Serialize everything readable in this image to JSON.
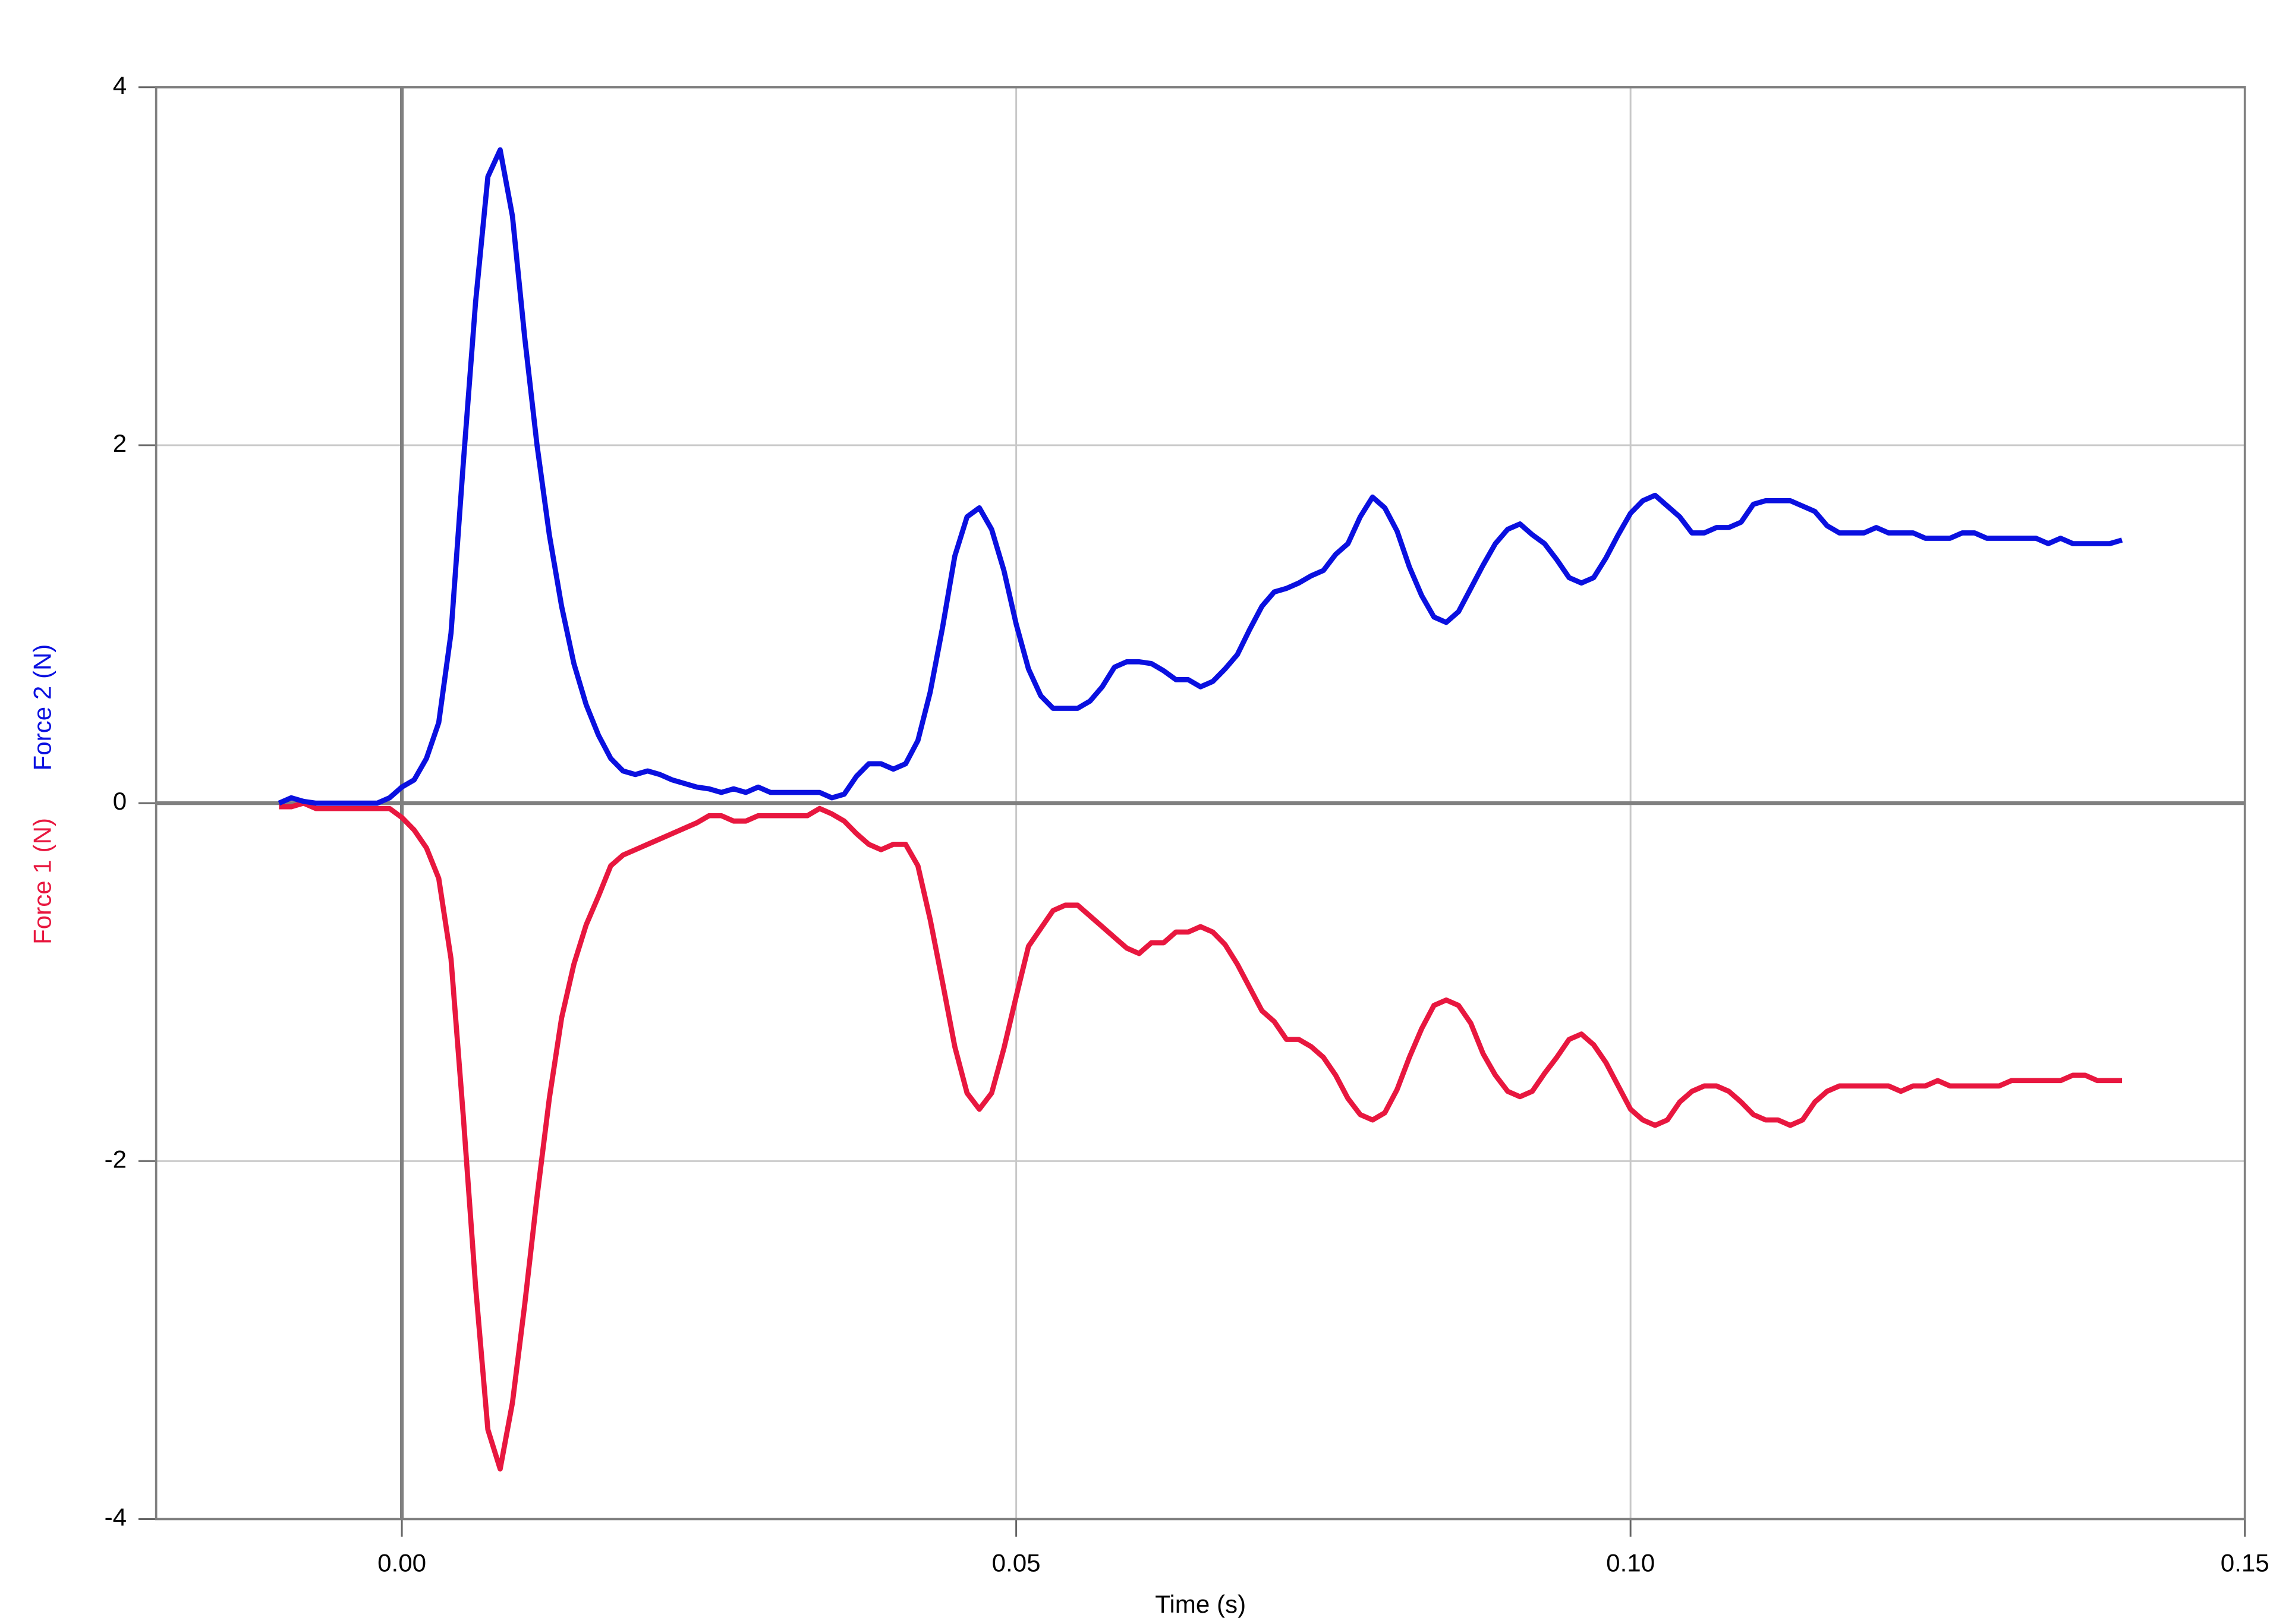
{
  "chart_data": {
    "type": "line",
    "xlabel": "Time (s)",
    "x": [
      -0.01,
      -0.009,
      -0.008,
      -0.007,
      -0.006,
      -0.005,
      -0.004,
      -0.003,
      -0.002,
      -0.001,
      0,
      0.001,
      0.002,
      0.003,
      0.004,
      0.005,
      0.006,
      0.007,
      0.008,
      0.009,
      0.01,
      0.011,
      0.012,
      0.013,
      0.014,
      0.015,
      0.016,
      0.017,
      0.018,
      0.019,
      0.02,
      0.021,
      0.022,
      0.023,
      0.024,
      0.025,
      0.026,
      0.027,
      0.028,
      0.029,
      0.03,
      0.031,
      0.032,
      0.033,
      0.034,
      0.035,
      0.036,
      0.037,
      0.038,
      0.039,
      0.04,
      0.041,
      0.042,
      0.043,
      0.044,
      0.045,
      0.046,
      0.047,
      0.048,
      0.049,
      0.05,
      0.051,
      0.052,
      0.053,
      0.054,
      0.055,
      0.056,
      0.057,
      0.058,
      0.059,
      0.06,
      0.061,
      0.062,
      0.063,
      0.064,
      0.065,
      0.066,
      0.067,
      0.068,
      0.069,
      0.07,
      0.071,
      0.072,
      0.073,
      0.074,
      0.075,
      0.076,
      0.077,
      0.078,
      0.079,
      0.08,
      0.081,
      0.082,
      0.083,
      0.084,
      0.085,
      0.086,
      0.087,
      0.088,
      0.089,
      0.09,
      0.091,
      0.092,
      0.093,
      0.094,
      0.095,
      0.096,
      0.097,
      0.098,
      0.099,
      0.1,
      0.101,
      0.102,
      0.103,
      0.104,
      0.105,
      0.106,
      0.107,
      0.108,
      0.109,
      0.11,
      0.111,
      0.112,
      0.113,
      0.114,
      0.115,
      0.116,
      0.117,
      0.118,
      0.119,
      0.12,
      0.121,
      0.122,
      0.123,
      0.124,
      0.125,
      0.126,
      0.127,
      0.128,
      0.129,
      0.13,
      0.131,
      0.132,
      0.133,
      0.134,
      0.135,
      0.136,
      0.137,
      0.138,
      0.139,
      0.14
    ],
    "series": [
      {
        "name": "Force 1 (N)",
        "color": "#e8173f",
        "values": [
          -0.02,
          -0.02,
          0,
          -0.03,
          -0.03,
          -0.03,
          -0.03,
          -0.03,
          -0.03,
          -0.03,
          -0.08,
          -0.15,
          -0.25,
          -0.42,
          -0.87,
          -1.75,
          -2.7,
          -3.5,
          -3.72,
          -3.35,
          -2.8,
          -2.2,
          -1.65,
          -1.2,
          -0.9,
          -0.68,
          -0.52,
          -0.35,
          -0.29,
          -0.26,
          -0.23,
          -0.2,
          -0.17,
          -0.14,
          -0.11,
          -0.07,
          -0.07,
          -0.1,
          -0.1,
          -0.07,
          -0.07,
          -0.07,
          -0.07,
          -0.07,
          -0.03,
          -0.06,
          -0.1,
          -0.17,
          -0.23,
          -0.26,
          -0.23,
          -0.23,
          -0.35,
          -0.65,
          -1.0,
          -1.36,
          -1.62,
          -1.71,
          -1.62,
          -1.37,
          -1.08,
          -0.8,
          -0.7,
          -0.6,
          -0.57,
          -0.57,
          -0.63,
          -0.69,
          -0.75,
          -0.81,
          -0.84,
          -0.78,
          -0.78,
          -0.72,
          -0.72,
          -0.69,
          -0.72,
          -0.79,
          -0.9,
          -1.03,
          -1.16,
          -1.22,
          -1.32,
          -1.32,
          -1.36,
          -1.42,
          -1.52,
          -1.65,
          -1.74,
          -1.77,
          -1.73,
          -1.6,
          -1.42,
          -1.26,
          -1.13,
          -1.1,
          -1.13,
          -1.23,
          -1.4,
          -1.52,
          -1.61,
          -1.64,
          -1.61,
          -1.51,
          -1.42,
          -1.32,
          -1.29,
          -1.35,
          -1.45,
          -1.58,
          -1.71,
          -1.77,
          -1.8,
          -1.77,
          -1.67,
          -1.61,
          -1.58,
          -1.58,
          -1.61,
          -1.67,
          -1.74,
          -1.77,
          -1.77,
          -1.8,
          -1.77,
          -1.67,
          -1.61,
          -1.58,
          -1.58,
          -1.58,
          -1.58,
          -1.58,
          -1.61,
          -1.58,
          -1.58,
          -1.55,
          -1.58,
          -1.58,
          -1.58,
          -1.58,
          -1.58,
          -1.55,
          -1.55,
          -1.55,
          -1.55,
          -1.55,
          -1.52,
          -1.52,
          -1.55,
          -1.55,
          -1.55
        ]
      },
      {
        "name": "Force 2 (N)",
        "color": "#0a10e0",
        "values": [
          0,
          0.03,
          0.01,
          0,
          0,
          0,
          0,
          0,
          0,
          0.03,
          0.09,
          0.13,
          0.25,
          0.45,
          0.95,
          1.9,
          2.8,
          3.5,
          3.65,
          3.28,
          2.6,
          2.0,
          1.5,
          1.1,
          0.78,
          0.55,
          0.38,
          0.25,
          0.18,
          0.16,
          0.18,
          0.16,
          0.13,
          0.11,
          0.09,
          0.08,
          0.06,
          0.08,
          0.06,
          0.09,
          0.06,
          0.06,
          0.06,
          0.06,
          0.06,
          0.03,
          0.05,
          0.15,
          0.22,
          0.22,
          0.19,
          0.22,
          0.35,
          0.62,
          0.98,
          1.38,
          1.6,
          1.65,
          1.53,
          1.3,
          1.0,
          0.75,
          0.6,
          0.53,
          0.53,
          0.53,
          0.57,
          0.65,
          0.76,
          0.79,
          0.79,
          0.78,
          0.74,
          0.69,
          0.69,
          0.65,
          0.68,
          0.75,
          0.83,
          0.97,
          1.1,
          1.18,
          1.2,
          1.23,
          1.27,
          1.3,
          1.39,
          1.45,
          1.6,
          1.71,
          1.65,
          1.52,
          1.32,
          1.16,
          1.04,
          1.01,
          1.07,
          1.2,
          1.33,
          1.45,
          1.53,
          1.56,
          1.5,
          1.45,
          1.36,
          1.26,
          1.23,
          1.26,
          1.37,
          1.5,
          1.62,
          1.69,
          1.72,
          1.66,
          1.6,
          1.51,
          1.51,
          1.54,
          1.54,
          1.57,
          1.67,
          1.69,
          1.69,
          1.69,
          1.66,
          1.63,
          1.55,
          1.51,
          1.51,
          1.51,
          1.54,
          1.51,
          1.51,
          1.51,
          1.48,
          1.48,
          1.48,
          1.51,
          1.51,
          1.48,
          1.48,
          1.48,
          1.48,
          1.48,
          1.45,
          1.48,
          1.45,
          1.45,
          1.45,
          1.45,
          1.47
        ]
      }
    ],
    "xlim": [
      -0.02,
      0.15
    ],
    "xticks": [
      {
        "value": 0,
        "label": "0.00"
      },
      {
        "value": 0.05,
        "label": "0.05"
      },
      {
        "value": 0.1,
        "label": "0.10"
      },
      0.15
    ],
    "ylim": [
      -4,
      4
    ],
    "yticks": [
      -4,
      -2,
      0,
      2,
      4
    ],
    "grid": true
  }
}
